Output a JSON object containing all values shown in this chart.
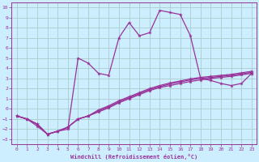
{
  "title": "",
  "xlabel": "Windchill (Refroidissement éolien,°C)",
  "ylabel": "",
  "bg_color": "#cceeff",
  "grid_color": "#aacccc",
  "line_color": "#993399",
  "xlim": [
    -0.5,
    23.5
  ],
  "ylim": [
    -3.5,
    10.5
  ],
  "yticks": [
    -3,
    -2,
    -1,
    0,
    1,
    2,
    3,
    4,
    5,
    6,
    7,
    8,
    9,
    10
  ],
  "xticks": [
    0,
    1,
    2,
    3,
    4,
    5,
    6,
    7,
    8,
    9,
    10,
    11,
    12,
    13,
    14,
    15,
    16,
    17,
    18,
    19,
    20,
    21,
    22,
    23
  ],
  "series_spiky_x": [
    0,
    1,
    2,
    3,
    4,
    5,
    6,
    7,
    8,
    9,
    10,
    11,
    12,
    13,
    14,
    15,
    16,
    17,
    18,
    19,
    20,
    21,
    22,
    23
  ],
  "series_spiky_y": [
    -0.7,
    -1.0,
    -1.7,
    -2.5,
    -2.2,
    -2.0,
    5.0,
    4.5,
    3.5,
    3.3,
    7.0,
    8.5,
    7.2,
    7.5,
    9.7,
    9.5,
    9.3,
    7.2,
    3.0,
    2.8,
    2.5,
    2.3,
    2.5,
    3.5
  ],
  "series_lin1_x": [
    0,
    1,
    2,
    3,
    4,
    5,
    6,
    7,
    8,
    9,
    10,
    11,
    12,
    13,
    14,
    15,
    16,
    17,
    18,
    19,
    20,
    21,
    22,
    23
  ],
  "series_lin1_y": [
    -0.7,
    -1.0,
    -1.5,
    -2.5,
    -2.2,
    -1.8,
    -1.0,
    -0.7,
    -0.3,
    0.1,
    0.6,
    1.0,
    1.4,
    1.8,
    2.1,
    2.3,
    2.5,
    2.7,
    2.85,
    3.0,
    3.1,
    3.2,
    3.35,
    3.5
  ],
  "series_lin2_x": [
    0,
    1,
    2,
    3,
    4,
    5,
    6,
    7,
    8,
    9,
    10,
    11,
    12,
    13,
    14,
    15,
    16,
    17,
    18,
    19,
    20,
    21,
    22,
    23
  ],
  "series_lin2_y": [
    -0.7,
    -1.0,
    -1.5,
    -2.5,
    -2.2,
    -1.8,
    -1.0,
    -0.7,
    -0.2,
    0.2,
    0.7,
    1.1,
    1.5,
    1.9,
    2.2,
    2.45,
    2.65,
    2.85,
    3.0,
    3.1,
    3.2,
    3.3,
    3.45,
    3.6
  ],
  "series_lin3_x": [
    0,
    1,
    2,
    3,
    4,
    5,
    6,
    7,
    8,
    9,
    10,
    11,
    12,
    13,
    14,
    15,
    16,
    17,
    18,
    19,
    20,
    21,
    22,
    23
  ],
  "series_lin3_y": [
    -0.7,
    -1.0,
    -1.5,
    -2.5,
    -2.2,
    -1.8,
    -1.0,
    -0.7,
    -0.1,
    0.3,
    0.8,
    1.2,
    1.6,
    2.0,
    2.3,
    2.55,
    2.75,
    2.95,
    3.1,
    3.2,
    3.3,
    3.4,
    3.55,
    3.7
  ]
}
